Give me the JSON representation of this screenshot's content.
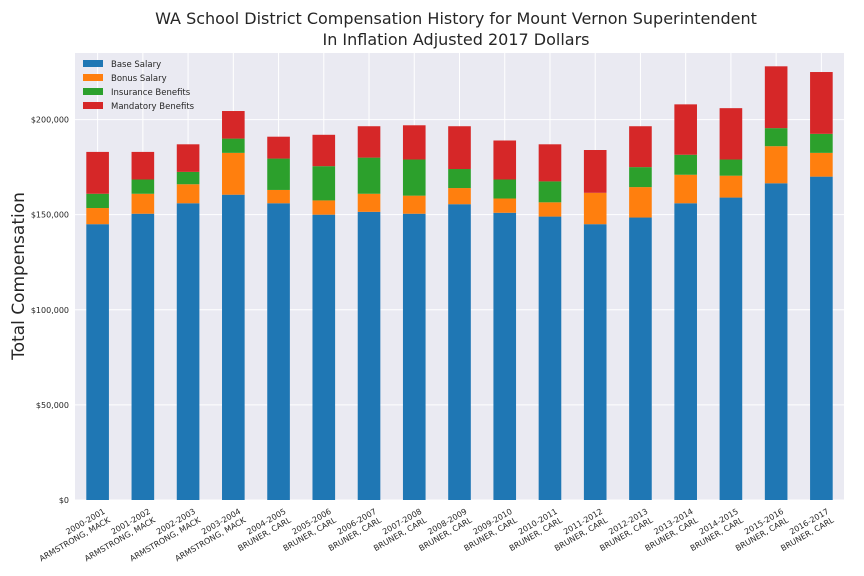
{
  "chart_data": {
    "type": "bar",
    "stacked": true,
    "title": "WA School District Compensation History for Mount Vernon Superintendent",
    "subtitle": "In Inflation Adjusted 2017 Dollars",
    "ylabel": "Total Compensation",
    "xlabel": "",
    "ylim": [
      0,
      235000
    ],
    "yticks": [
      0,
      50000,
      100000,
      150000,
      200000
    ],
    "ytick_labels": [
      "$0",
      "$50,000",
      "$100,000",
      "$150,000",
      "$200,000"
    ],
    "grid": true,
    "legend_position": "top-left",
    "categories": [
      [
        "2000-2001",
        "ARMSTRONG, MACK"
      ],
      [
        "2001-2002",
        "ARMSTRONG, MACK"
      ],
      [
        "2002-2003",
        "ARMSTRONG, MACK"
      ],
      [
        "2003-2004",
        "ARMSTRONG, MACK"
      ],
      [
        "2004-2005",
        "BRUNER, CARL"
      ],
      [
        "2005-2006",
        "BRUNER, CARL"
      ],
      [
        "2006-2007",
        "BRUNER, CARL"
      ],
      [
        "2007-2008",
        "BRUNER, CARL"
      ],
      [
        "2008-2009",
        "BRUNER, CARL"
      ],
      [
        "2009-2010",
        "BRUNER, CARL"
      ],
      [
        "2010-2011",
        "BRUNER, CARL"
      ],
      [
        "2011-2012",
        "BRUNER, CARL"
      ],
      [
        "2012-2013",
        "BRUNER, CARL"
      ],
      [
        "2013-2014",
        "BRUNER, CARL"
      ],
      [
        "2014-2015",
        "BRUNER, CARL"
      ],
      [
        "2015-2016",
        "BRUNER, CARL"
      ],
      [
        "2016-2017",
        "BRUNER, CARL"
      ]
    ],
    "series": [
      {
        "name": "Base Salary",
        "color": "#1f77b4",
        "values": [
          145000,
          150500,
          156000,
          160500,
          156000,
          150000,
          151500,
          150500,
          155500,
          151000,
          149000,
          145000,
          148500,
          156000,
          159000,
          166500,
          170000
        ]
      },
      {
        "name": "Bonus Salary",
        "color": "#ff7f0e",
        "values": [
          8500,
          10500,
          10000,
          22000,
          7000,
          7500,
          9500,
          9500,
          8500,
          7500,
          7500,
          16500,
          16000,
          15000,
          11500,
          19500,
          12500
        ]
      },
      {
        "name": "Insurance Benefits",
        "color": "#2ca02c",
        "values": [
          7500,
          7500,
          6500,
          7500,
          16500,
          18000,
          19000,
          19000,
          10000,
          10000,
          11000,
          0,
          10500,
          10500,
          8500,
          9500,
          10000
        ]
      },
      {
        "name": "Mandatory Benefits",
        "color": "#d62728",
        "values": [
          22000,
          14500,
          14500,
          14500,
          11500,
          16500,
          16500,
          18000,
          22500,
          20500,
          19500,
          22500,
          21500,
          26500,
          27000,
          32500,
          32500
        ]
      }
    ]
  }
}
